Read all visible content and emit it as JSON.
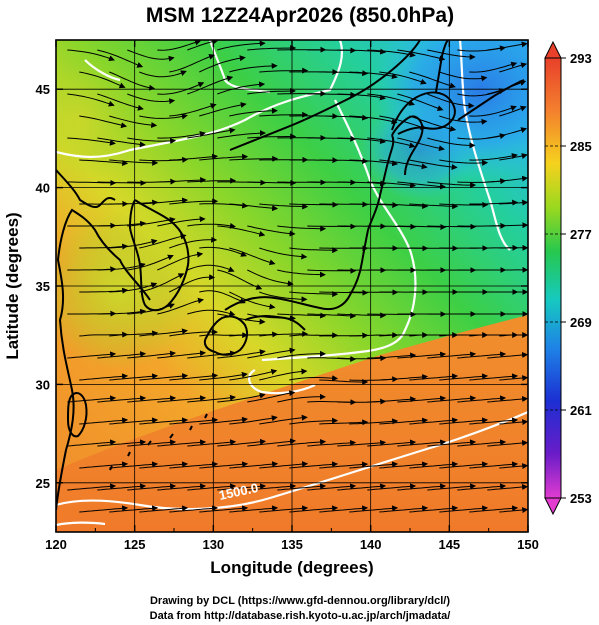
{
  "title": "MSM 12Z24Apr2026 (850.0hPa)",
  "map": {
    "xlabel": "Longitude (degrees)",
    "ylabel": "Latitude  (degrees)",
    "lon_range": [
      120,
      150
    ],
    "lat_range": [
      22.5,
      47.5
    ],
    "lon_ticks": [
      "120",
      "125",
      "130",
      "135",
      "140",
      "145",
      "150"
    ],
    "lat_ticks": [
      "25",
      "30",
      "35",
      "40",
      "45"
    ],
    "grid": true,
    "contour_label": "1500.0"
  },
  "colorbar": {
    "ticks": [
      "293",
      "285",
      "277",
      "269",
      "261",
      "253"
    ],
    "colors": [
      "#e8402a",
      "#f4802e",
      "#f5d21e",
      "#9ad81f",
      "#27c84e",
      "#16c9c0",
      "#1e82e6",
      "#1c2fd2",
      "#6a1cc8",
      "#e23cd0"
    ]
  },
  "credits": {
    "line1": "Drawing by DCL (https://www.gfd-dennou.org/library/dcl/)",
    "line2": "Data from http://database.rish.kyoto-u.ac.jp/arch/jmadata/"
  }
}
